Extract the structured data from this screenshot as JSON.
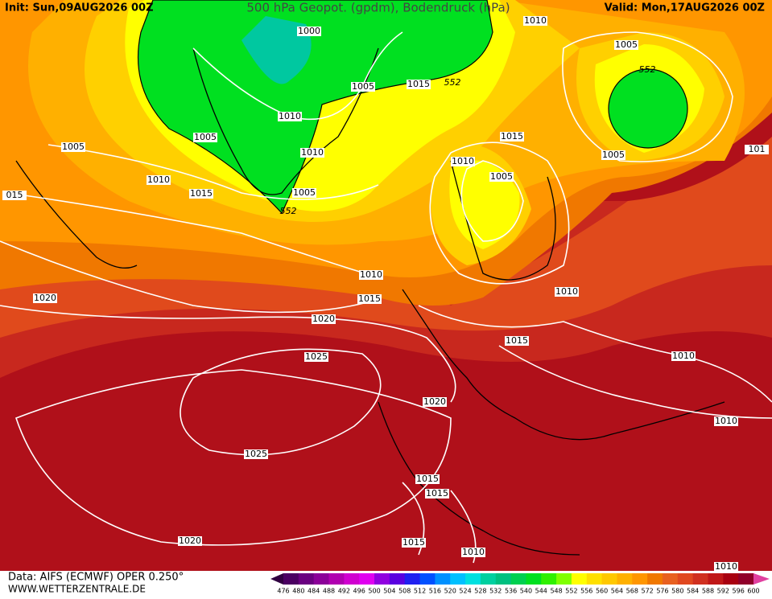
{
  "header": {
    "init": "Init: Sun,09AUG2026 00Z",
    "title": "500 hPa Geopot. (gpdm), Bodendruck (hPa)",
    "valid": "Valid: Mon,17AUG2026 00Z"
  },
  "footer": {
    "source": "Data: AIFS (ECMWF) OPER 0.250°",
    "site": "WWW.WETTERZENTRALE.DE"
  },
  "isobar_labels": [
    "1000",
    "1005",
    "1005",
    "1010",
    "1010",
    "1005",
    "552",
    "1005",
    "1010",
    "1015",
    "015",
    "1020",
    "1010",
    "1015",
    "1020",
    "1025",
    "1025",
    "1020",
    "1020",
    "1015",
    "1015",
    "1015",
    "1010",
    "1015",
    "1010",
    "1010",
    "1005",
    "1015",
    "1015",
    "552",
    "1010",
    "1005",
    "552",
    "1005",
    "101",
    "1010",
    "1010",
    "1010"
  ],
  "colorbar": {
    "labels": [
      476,
      480,
      484,
      488,
      492,
      496,
      500,
      504,
      508,
      512,
      516,
      520,
      524,
      528,
      532,
      536,
      540,
      544,
      548,
      552,
      556,
      560,
      564,
      568,
      572,
      576,
      580,
      584,
      588,
      592,
      596,
      600
    ],
    "colors": [
      "#4b0062",
      "#6a0080",
      "#8b0099",
      "#b000b0",
      "#d000d0",
      "#e000f0",
      "#9000e0",
      "#5a00e0",
      "#2020f0",
      "#0050ff",
      "#0090ff",
      "#00c0ff",
      "#00e0e0",
      "#00d0a0",
      "#00c080",
      "#00d050",
      "#00e020",
      "#30f000",
      "#80ff00",
      "#ffff00",
      "#ffe000",
      "#ffc800",
      "#ffb000",
      "#ff9600",
      "#f07800",
      "#e86020",
      "#e04820",
      "#d03020",
      "#c01818",
      "#a80010",
      "#90002a"
    ],
    "low_color": "#300040",
    "high_color": "#e040a0"
  }
}
